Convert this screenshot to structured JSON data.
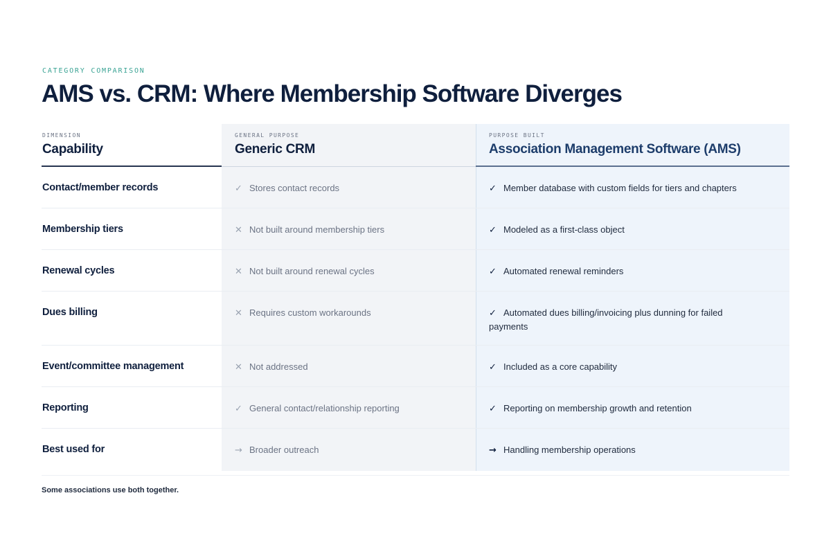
{
  "eyebrow": "CATEGORY COMPARISON",
  "title": "AMS vs. CRM: Where Membership Software Diverges",
  "columns": [
    {
      "label": "DIMENSION",
      "title": "Capability"
    },
    {
      "label": "GENERAL PURPOSE",
      "title": "Generic CRM"
    },
    {
      "label": "PURPOSE BUILT",
      "title": "Association Management Software (AMS)"
    }
  ],
  "rows": [
    {
      "dimension": "Contact/member records",
      "crm_mark": "✓",
      "crm": "Stores contact records",
      "ams_mark": "✓",
      "ams": "Member database with custom fields for tiers and chapters"
    },
    {
      "dimension": "Membership tiers",
      "crm_mark": "✕",
      "crm": "Not built around membership tiers",
      "ams_mark": "✓",
      "ams": "Modeled as a first-class object"
    },
    {
      "dimension": "Renewal cycles",
      "crm_mark": "✕",
      "crm": "Not built around renewal cycles",
      "ams_mark": "✓",
      "ams": "Automated renewal reminders"
    },
    {
      "dimension": "Dues billing",
      "crm_mark": "✕",
      "crm": "Requires custom workarounds",
      "ams_mark": "✓",
      "ams": "Automated dues billing/invoicing plus dunning for failed payments"
    },
    {
      "dimension": "Event/committee management",
      "crm_mark": "✕",
      "crm": "Not addressed",
      "ams_mark": "✓",
      "ams": "Included as a core capability"
    },
    {
      "dimension": "Reporting",
      "crm_mark": "✓",
      "crm": "General contact/relationship reporting",
      "ams_mark": "✓",
      "ams": "Reporting on membership growth and retention"
    },
    {
      "dimension": "Best used for",
      "crm_mark": "→",
      "crm": "Broader outreach",
      "ams_mark": "→",
      "ams": "Handling membership operations"
    }
  ],
  "footnote": "Some associations use both together.",
  "colors": {
    "accent": "#3aa394",
    "navy": "#0f1f3d",
    "crm_column_bg": "#f2f4f7",
    "ams_column_bg": "#eef4fb"
  }
}
